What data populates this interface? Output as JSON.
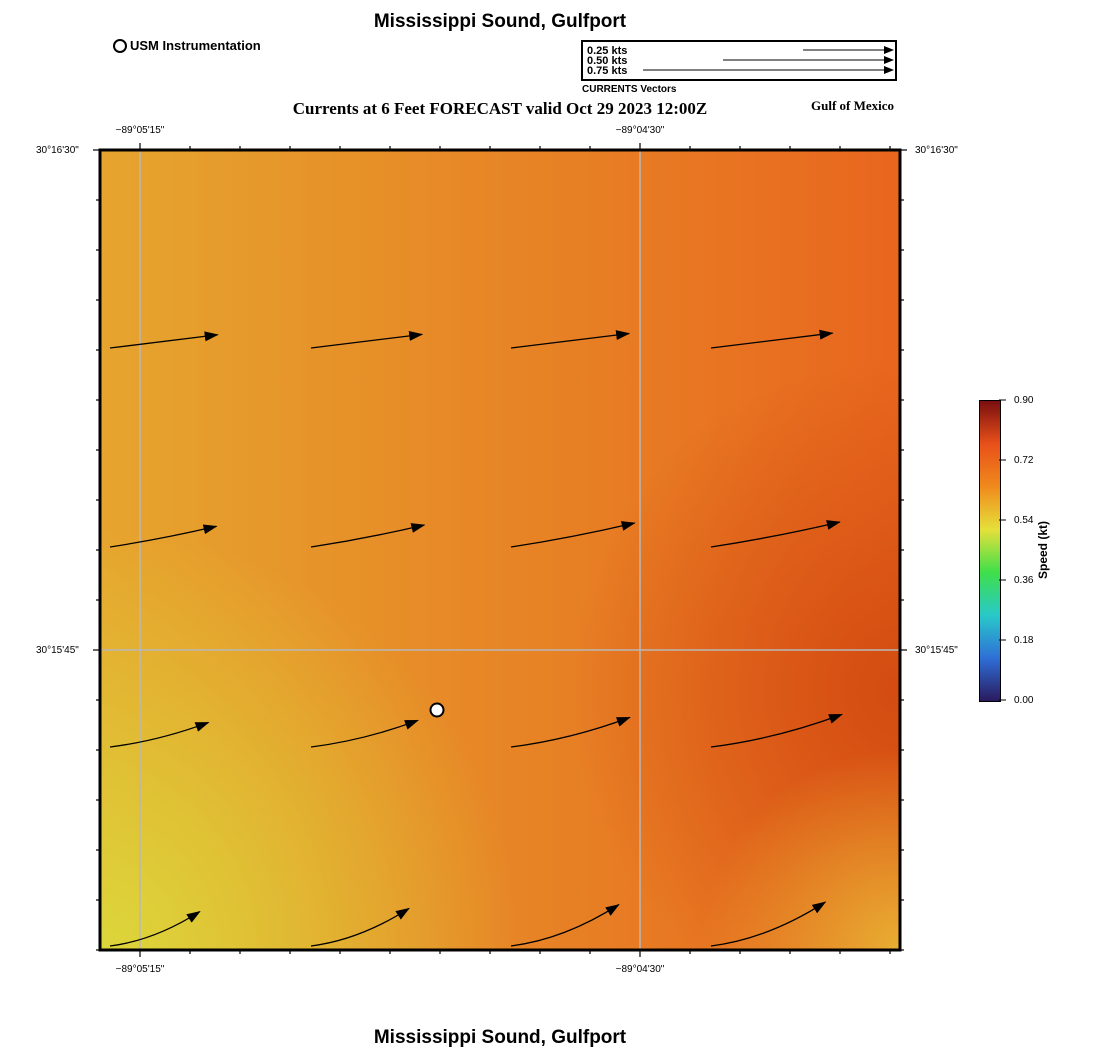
{
  "header": {
    "title": "Mississippi Sound, Gulfport",
    "subtitle": "Currents at 6 Feet FORECAST valid Oct 29 2023 12:00Z",
    "region": "Gulf of Mexico",
    "footer_title": "Mississippi Sound, Gulfport"
  },
  "station_legend": {
    "label": "USM Instrumentation"
  },
  "vector_legend": {
    "title": "CURRENTS Vectors",
    "entries": [
      {
        "label": "0.25 kts",
        "speed": 0.25
      },
      {
        "label": "0.50 kts",
        "speed": 0.5
      },
      {
        "label": "0.75 kts",
        "speed": 0.75
      }
    ]
  },
  "axes": {
    "lon_left": "−89°05'15\"",
    "lon_right": "−89°04'30\"",
    "lat_top": "30°16'30\"",
    "lat_mid": "30°15'45\""
  },
  "colorbar": {
    "label": "Speed (kt)",
    "ticks": [
      "0.00",
      "0.18",
      "0.36",
      "0.54",
      "0.72",
      "0.90"
    ],
    "min": 0.0,
    "max": 0.9,
    "colors": [
      "#2a1a5e",
      "#2f6fd6",
      "#28c9c9",
      "#3fdf4a",
      "#e6e03a",
      "#f08a1c",
      "#e8501a",
      "#7a0f0f"
    ]
  },
  "map_colors": {
    "northwest": "#e6a52e",
    "northeast": "#e8661e",
    "southwest": "#dcd63a",
    "southeast_core": "#d24a10",
    "southeast_corner": "#e8ae32"
  },
  "chart_data": {
    "type": "vector-field",
    "variable": "current speed (kt)",
    "rows": [
      {
        "row": 1,
        "speeds_kt": [
          0.62,
          0.64,
          0.68,
          0.7
        ]
      },
      {
        "row": 2,
        "speeds_kt": [
          0.62,
          0.66,
          0.72,
          0.75
        ]
      },
      {
        "row": 3,
        "speeds_kt": [
          0.58,
          0.63,
          0.7,
          0.78
        ]
      },
      {
        "row": 4,
        "speeds_kt": [
          0.55,
          0.6,
          0.66,
          0.7
        ]
      }
    ],
    "direction": "east-northeast",
    "station": "USM Instrumentation"
  }
}
